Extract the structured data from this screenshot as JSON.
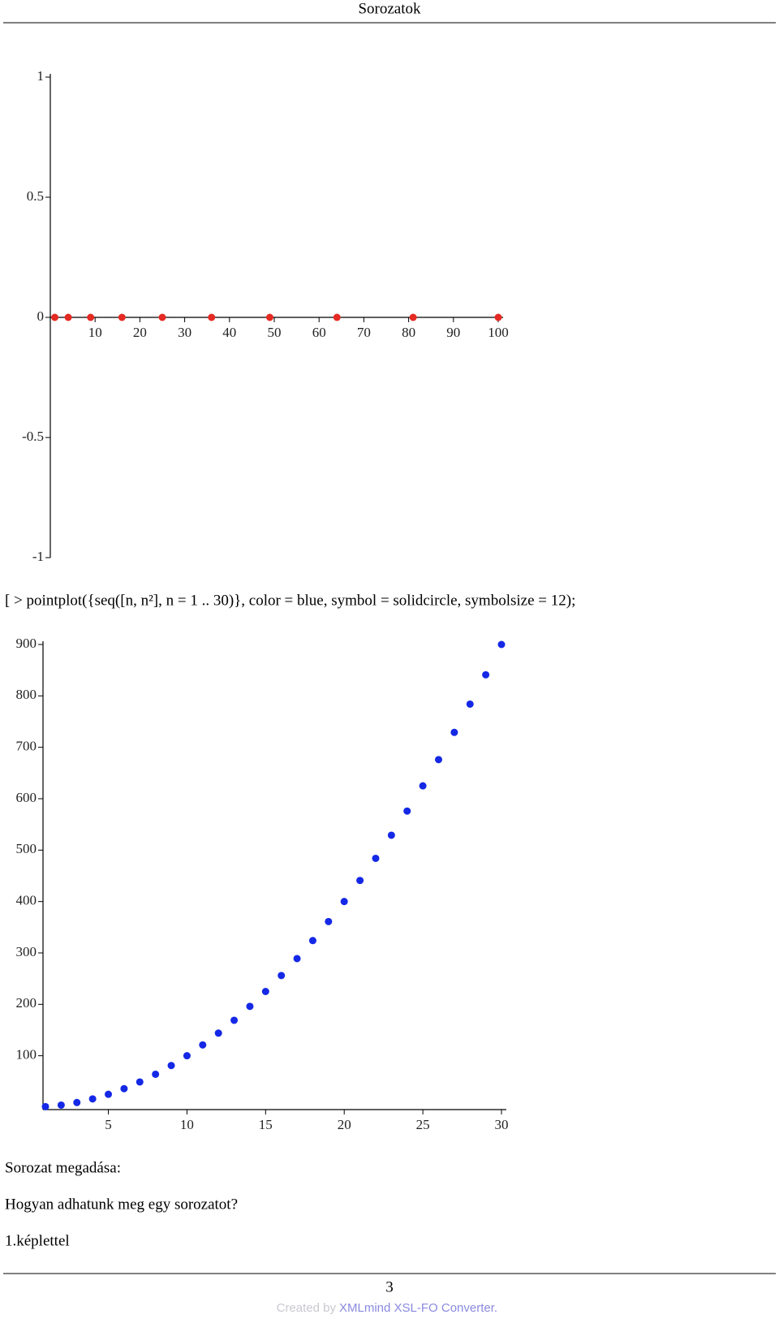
{
  "header": {
    "title": "Sorozatok"
  },
  "chart_data": [
    {
      "type": "scatter",
      "x": [
        1,
        4,
        9,
        16,
        25,
        36,
        49,
        64,
        81,
        100
      ],
      "y": [
        0,
        0,
        0,
        0,
        0,
        0,
        0,
        0,
        0,
        0
      ],
      "color": "#e42a22",
      "xlim": [
        0,
        100
      ],
      "ylim": [
        -1,
        1
      ],
      "xticks": [
        10,
        20,
        30,
        40,
        50,
        60,
        70,
        80,
        90,
        100
      ],
      "yticks": [
        -1,
        -0.5,
        0,
        0.5,
        1
      ]
    },
    {
      "type": "scatter",
      "x": [
        1,
        2,
        3,
        4,
        5,
        6,
        7,
        8,
        9,
        10,
        11,
        12,
        13,
        14,
        15,
        16,
        17,
        18,
        19,
        20,
        21,
        22,
        23,
        24,
        25,
        26,
        27,
        28,
        29,
        30
      ],
      "y": [
        1,
        4,
        9,
        16,
        25,
        36,
        49,
        64,
        81,
        100,
        121,
        144,
        169,
        196,
        225,
        256,
        289,
        324,
        361,
        400,
        441,
        484,
        529,
        576,
        625,
        676,
        729,
        784,
        841,
        900
      ],
      "color": "#1428e6",
      "xlim": [
        1,
        30
      ],
      "ylim": [
        0,
        900
      ],
      "xticks": [
        5,
        10,
        15,
        20,
        25,
        30
      ],
      "yticks": [
        100,
        200,
        300,
        400,
        500,
        600,
        700,
        800,
        900
      ]
    }
  ],
  "code": "[ > pointplot({seq([n, n²], n = 1 .. 30)}, color = blue, symbol = solidcircle, symbolsize = 12);",
  "paragraphs": [
    "Sorozat megadása:",
    "Hogyan adhatunk meg egy sorozatot?",
    "1.képlettel"
  ],
  "footer": {
    "page": "3",
    "created_by": "Created by",
    "converter": "XMLmind XSL-FO Converter."
  }
}
